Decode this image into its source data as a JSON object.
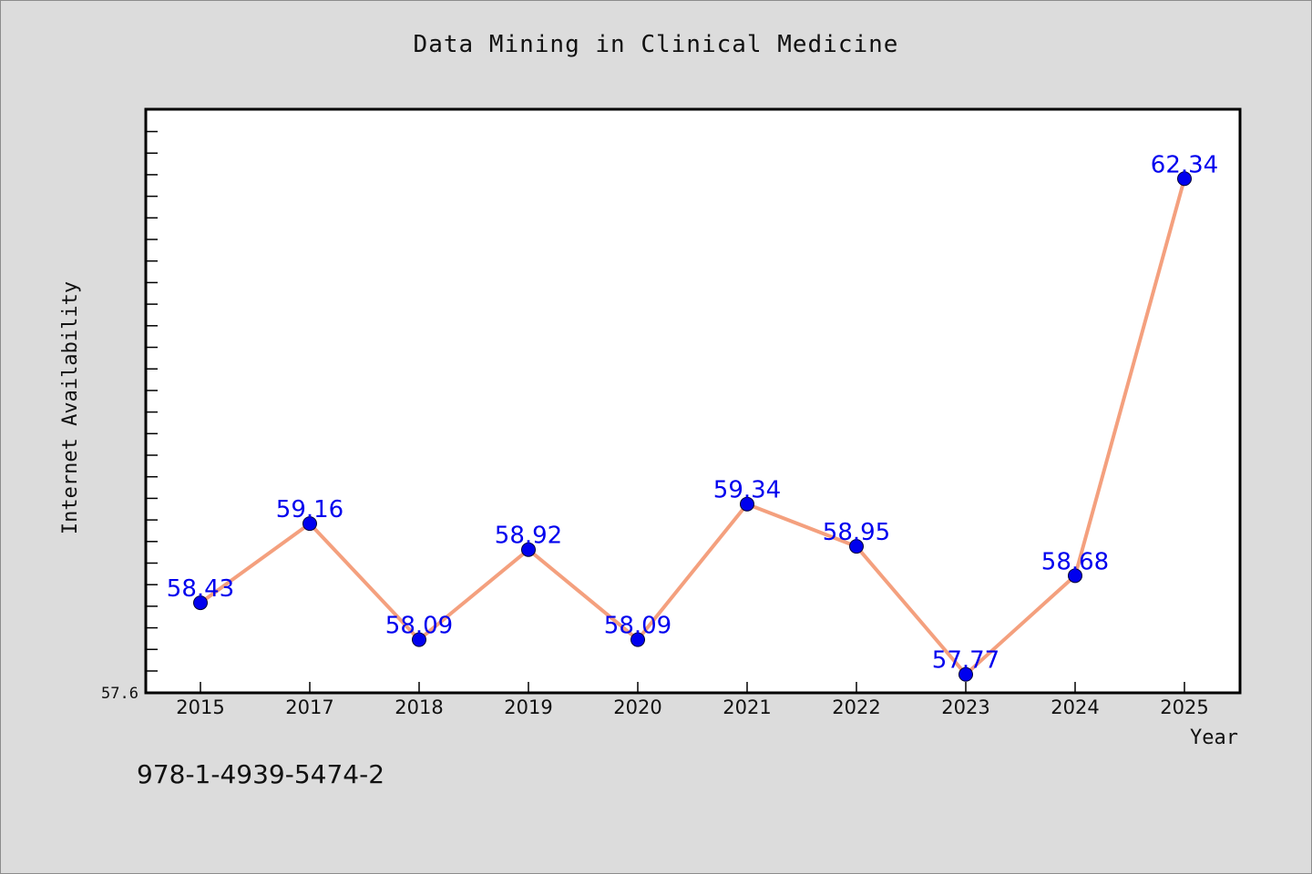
{
  "chart_data": {
    "type": "line",
    "title": "Data Mining in Clinical Medicine",
    "xlabel": "Year",
    "ylabel": "Internet Availability",
    "categories": [
      "2015",
      "2017",
      "2018",
      "2019",
      "2020",
      "2021",
      "2022",
      "2023",
      "2024",
      "2025"
    ],
    "values": [
      58.43,
      59.16,
      58.09,
      58.92,
      58.09,
      59.34,
      58.95,
      57.77,
      58.68,
      62.34
    ],
    "value_labels": [
      "58.43",
      "59.16",
      "58.09",
      "58.92",
      "58.09",
      "59.34",
      "58.95",
      "57.77",
      "58.68",
      "62.34"
    ],
    "ylim": [
      57.6,
      62.98
    ],
    "y_tick_labels": [
      "57.6"
    ],
    "grid": false,
    "line_color": "#f4a07e",
    "marker_color": "#0000ee",
    "label_color": "#0000ee",
    "plot_background": "#ffffff",
    "figure_background": "#dcdcdc"
  },
  "footer": {
    "isbn": "978-1-4939-5474-2"
  }
}
